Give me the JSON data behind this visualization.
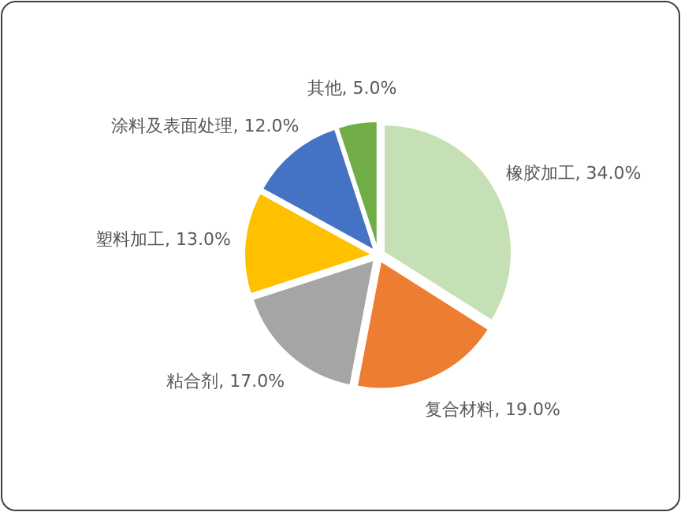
{
  "chart_data": {
    "type": "pie",
    "categories": [
      "橡胶加工",
      "复合材料",
      "粘合剂",
      "塑料加工",
      "涂料及表面处理",
      "其他"
    ],
    "values": [
      34,
      19,
      17,
      13,
      12,
      5
    ],
    "value_labels": [
      "34.0%",
      "19.0%",
      "17.0%",
      "13.0%",
      "12.0%",
      "5.0%"
    ],
    "colors": [
      "#c5e0b4",
      "#ed7d31",
      "#a5a5a5",
      "#ffc000",
      "#4472c4",
      "#70ad47"
    ]
  }
}
